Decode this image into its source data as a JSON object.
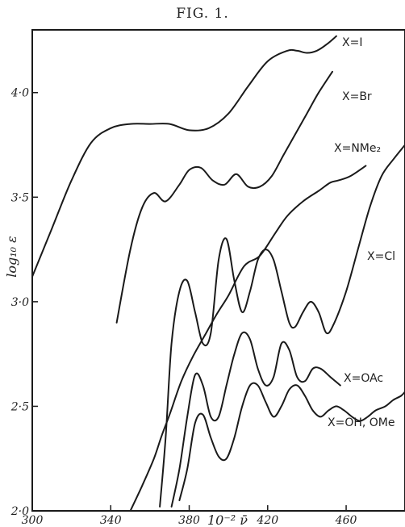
{
  "chart_data": {
    "type": "line",
    "title": "FIG. 1.",
    "xlabel": "10⁻² ν̄",
    "ylabel": "log₁₀ ε",
    "xlim": [
      300,
      490
    ],
    "ylim": [
      2.0,
      4.3
    ],
    "xticks": [
      300,
      340,
      380,
      420,
      460
    ],
    "xtick_labels": [
      "300",
      "340",
      "380",
      "420",
      "460"
    ],
    "yticks": [
      2.0,
      2.5,
      3.0,
      3.5,
      4.0
    ],
    "ytick_labels": [
      "2·0",
      "2·5",
      "3·0",
      "3·5",
      "4·0"
    ],
    "grid": false,
    "legend": "none",
    "series": [
      {
        "name": "X=I",
        "x": [
          300,
          310,
          320,
          330,
          340,
          350,
          360,
          370,
          380,
          390,
          400,
          410,
          420,
          430,
          435,
          440,
          445,
          450,
          455
        ],
        "y": [
          3.12,
          3.35,
          3.58,
          3.76,
          3.83,
          3.85,
          3.85,
          3.85,
          3.82,
          3.83,
          3.9,
          4.03,
          4.15,
          4.2,
          4.2,
          4.19,
          4.2,
          4.23,
          4.27
        ]
      },
      {
        "name": "X=Br",
        "x": [
          343,
          350,
          356,
          362,
          368,
          375,
          380,
          386,
          392,
          398,
          404,
          410,
          416,
          422,
          428,
          434,
          440,
          446,
          453
        ],
        "y": [
          2.9,
          3.25,
          3.45,
          3.52,
          3.48,
          3.56,
          3.63,
          3.64,
          3.58,
          3.56,
          3.61,
          3.55,
          3.55,
          3.6,
          3.7,
          3.8,
          3.9,
          4.0,
          4.1
        ]
      },
      {
        "name": "X=NMe₂",
        "x": [
          350,
          356,
          362,
          366,
          370,
          376,
          382,
          388,
          394,
          400,
          408,
          416,
          424,
          430,
          438,
          446,
          452,
          456,
          462,
          470
        ],
        "y": [
          2.0,
          2.12,
          2.25,
          2.36,
          2.46,
          2.62,
          2.74,
          2.84,
          2.94,
          3.03,
          3.17,
          3.22,
          3.33,
          3.41,
          3.48,
          3.53,
          3.57,
          3.58,
          3.6,
          3.65
        ]
      },
      {
        "name": "X=Cl",
        "x": [
          365,
          368,
          371,
          375,
          379,
          383,
          387,
          391,
          395,
          399,
          403,
          407,
          411,
          415,
          419,
          423,
          427,
          431,
          434,
          438,
          442,
          446,
          450,
          454,
          460,
          466,
          472,
          478,
          484,
          490
        ],
        "y": [
          2.02,
          2.35,
          2.8,
          3.05,
          3.1,
          2.95,
          2.8,
          2.85,
          3.2,
          3.3,
          3.1,
          2.95,
          3.05,
          3.2,
          3.25,
          3.2,
          3.05,
          2.9,
          2.88,
          2.95,
          3.0,
          2.95,
          2.85,
          2.9,
          3.05,
          3.25,
          3.45,
          3.6,
          3.68,
          3.75
        ]
      },
      {
        "name": "X=OAc",
        "x": [
          371,
          375,
          379,
          383,
          387,
          391,
          395,
          399,
          403,
          407,
          411,
          415,
          419,
          423,
          427,
          431,
          435,
          439,
          443,
          447,
          452,
          457
        ],
        "y": [
          2.02,
          2.2,
          2.45,
          2.65,
          2.6,
          2.45,
          2.45,
          2.6,
          2.75,
          2.85,
          2.82,
          2.68,
          2.6,
          2.64,
          2.8,
          2.77,
          2.64,
          2.62,
          2.68,
          2.68,
          2.64,
          2.6
        ]
      },
      {
        "name": "X=OH, OMe",
        "x": [
          375,
          379,
          383,
          387,
          391,
          395,
          399,
          403,
          407,
          411,
          415,
          419,
          423,
          427,
          431,
          435,
          439,
          443,
          447,
          451,
          455,
          459,
          463,
          467,
          471,
          475,
          480,
          484,
          488,
          490
        ],
        "y": [
          2.05,
          2.2,
          2.42,
          2.46,
          2.35,
          2.26,
          2.25,
          2.35,
          2.5,
          2.6,
          2.6,
          2.52,
          2.45,
          2.5,
          2.58,
          2.6,
          2.55,
          2.48,
          2.45,
          2.48,
          2.5,
          2.48,
          2.45,
          2.43,
          2.45,
          2.48,
          2.5,
          2.53,
          2.55,
          2.57
        ]
      }
    ]
  }
}
